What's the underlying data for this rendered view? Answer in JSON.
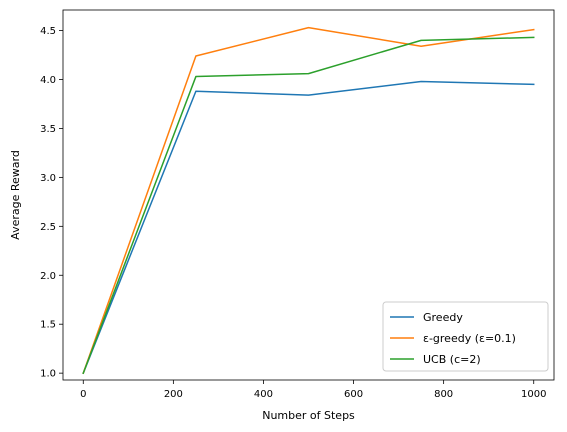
{
  "chart_data": {
    "type": "line",
    "title": "",
    "xlabel": "Number of Steps",
    "ylabel": "Average Reward",
    "x": [
      0,
      250,
      500,
      750,
      1000
    ],
    "xlim": [
      -45,
      1045
    ],
    "ylim": [
      0.93,
      4.71
    ],
    "xticks": [
      0,
      200,
      400,
      600,
      800,
      1000
    ],
    "yticks": [
      1.0,
      1.5,
      2.0,
      2.5,
      3.0,
      3.5,
      4.0,
      4.5
    ],
    "xtick_labels": [
      "0",
      "200",
      "400",
      "600",
      "800",
      "1000"
    ],
    "ytick_labels": [
      "1.0",
      "1.5",
      "2.0",
      "2.5",
      "3.0",
      "3.5",
      "4.0",
      "4.5"
    ],
    "grid": false,
    "legend_position": "lower-right",
    "series": [
      {
        "name": "Greedy",
        "color": "#1f77b4",
        "values": [
          1.0,
          3.88,
          3.84,
          3.98,
          3.95
        ]
      },
      {
        "name": "ε-greedy (ε=0.1)",
        "color": "#ff7f0e",
        "values": [
          1.0,
          4.24,
          4.53,
          4.34,
          4.51
        ]
      },
      {
        "name": "UCB (c=2)",
        "color": "#2ca02c",
        "values": [
          1.0,
          4.03,
          4.06,
          4.4,
          4.43
        ]
      }
    ]
  }
}
